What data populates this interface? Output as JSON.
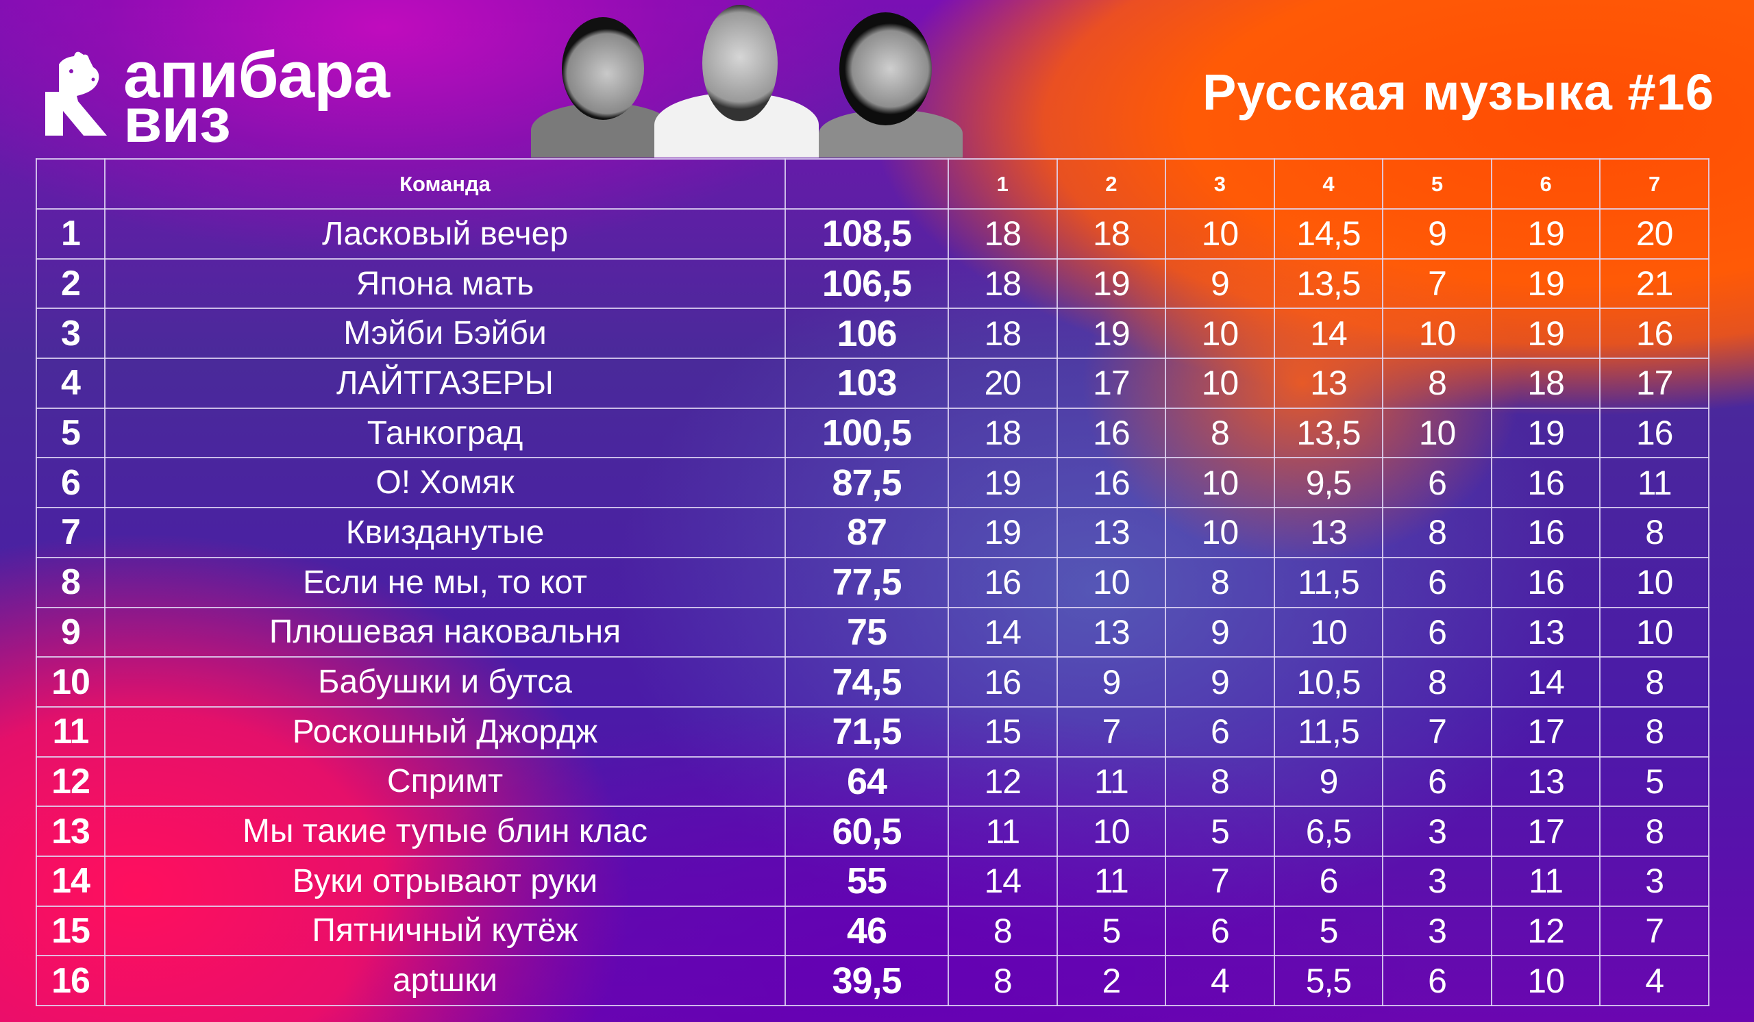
{
  "brand": {
    "logo_line1": "апибара",
    "logo_line2": "виз",
    "logo_initial": "К",
    "logo_name": "Капибара Квиз"
  },
  "event": {
    "title": "Русская музыка #16"
  },
  "colors": {
    "orange": "#ff5206",
    "magenta": "#c00cbe",
    "pink": "#ff0f5e",
    "purple": "#5a12b0",
    "grid_line": "#e1d7f5",
    "text": "#ffffff"
  },
  "table": {
    "headers": {
      "rank": "",
      "team": "Команда",
      "total": "",
      "rounds": [
        "1",
        "2",
        "3",
        "4",
        "5",
        "6",
        "7"
      ]
    },
    "rows": [
      {
        "rank": "1",
        "team": "Ласковый вечер",
        "total": "108,5",
        "rounds": [
          "18",
          "18",
          "10",
          "14,5",
          "9",
          "19",
          "20"
        ]
      },
      {
        "rank": "2",
        "team": "Япона мать",
        "total": "106,5",
        "rounds": [
          "18",
          "19",
          "9",
          "13,5",
          "7",
          "19",
          "21"
        ]
      },
      {
        "rank": "3",
        "team": "Мэйби Бэйби",
        "total": "106",
        "rounds": [
          "18",
          "19",
          "10",
          "14",
          "10",
          "19",
          "16"
        ]
      },
      {
        "rank": "4",
        "team": "ЛАЙТГАЗЕРЫ",
        "total": "103",
        "rounds": [
          "20",
          "17",
          "10",
          "13",
          "8",
          "18",
          "17"
        ]
      },
      {
        "rank": "5",
        "team": "Танкоград",
        "total": "100,5",
        "rounds": [
          "18",
          "16",
          "8",
          "13,5",
          "10",
          "19",
          "16"
        ]
      },
      {
        "rank": "6",
        "team": "О! Хомяк",
        "total": "87,5",
        "rounds": [
          "19",
          "16",
          "10",
          "9,5",
          "6",
          "16",
          "11"
        ]
      },
      {
        "rank": "7",
        "team": "Квизданутые",
        "total": "87",
        "rounds": [
          "19",
          "13",
          "10",
          "13",
          "8",
          "16",
          "8"
        ]
      },
      {
        "rank": "8",
        "team": "Если не мы, то кот",
        "total": "77,5",
        "rounds": [
          "16",
          "10",
          "8",
          "11,5",
          "6",
          "16",
          "10"
        ]
      },
      {
        "rank": "9",
        "team": "Плюшевая наковальня",
        "total": "75",
        "rounds": [
          "14",
          "13",
          "9",
          "10",
          "6",
          "13",
          "10"
        ]
      },
      {
        "rank": "10",
        "team": "Бабушки и бутса",
        "total": "74,5",
        "rounds": [
          "16",
          "9",
          "9",
          "10,5",
          "8",
          "14",
          "8"
        ]
      },
      {
        "rank": "11",
        "team": "Роскошный Джордж",
        "total": "71,5",
        "rounds": [
          "15",
          "7",
          "6",
          "11,5",
          "7",
          "17",
          "8"
        ]
      },
      {
        "rank": "12",
        "team": "Спримт",
        "total": "64",
        "rounds": [
          "12",
          "11",
          "8",
          "9",
          "6",
          "13",
          "5"
        ]
      },
      {
        "rank": "13",
        "team": "Мы такие тупые блин клас",
        "total": "60,5",
        "rounds": [
          "11",
          "10",
          "5",
          "6,5",
          "3",
          "17",
          "8"
        ]
      },
      {
        "rank": "14",
        "team": "Вуки отрывают руки",
        "total": "55",
        "rounds": [
          "14",
          "11",
          "7",
          "6",
          "3",
          "11",
          "3"
        ]
      },
      {
        "rank": "15",
        "team": "Пятничный кутёж",
        "total": "46",
        "rounds": [
          "8",
          "5",
          "6",
          "5",
          "3",
          "12",
          "7"
        ]
      },
      {
        "rank": "16",
        "team": "арtшки",
        "total": "39,5",
        "rounds": [
          "8",
          "2",
          "4",
          "5,5",
          "6",
          "10",
          "4"
        ]
      }
    ]
  },
  "photos": [
    {
      "label": "host-photo-1"
    },
    {
      "label": "host-photo-2"
    },
    {
      "label": "host-photo-3"
    }
  ]
}
